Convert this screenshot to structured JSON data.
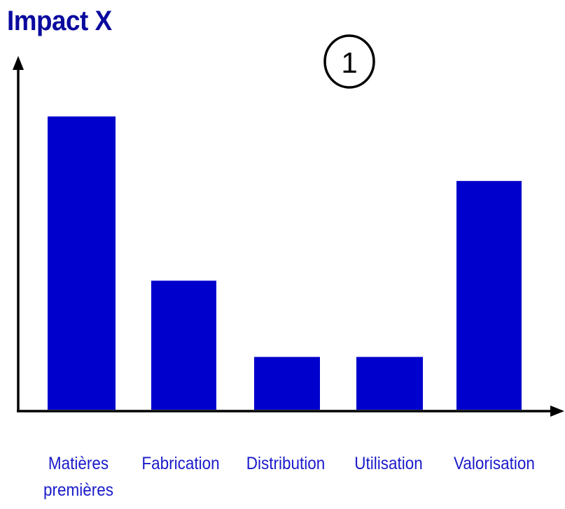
{
  "chart_data": {
    "type": "bar",
    "ylabel": "Impact X",
    "xlabel": "",
    "badge": "1",
    "categories": [
      "Matières\npremières",
      "Fabrication",
      "Distribution",
      "Utilisation",
      "Valorisation"
    ],
    "values": [
      100,
      44,
      18,
      18,
      78
    ],
    "ylim": [
      0,
      108
    ],
    "grid": false,
    "y_ticks_shown": false,
    "colors": {
      "bar": "#0000cc",
      "axis": "#000000",
      "title": "#0a0a9e",
      "labels": "#1a1acc",
      "badge_stroke": "#000000"
    }
  }
}
